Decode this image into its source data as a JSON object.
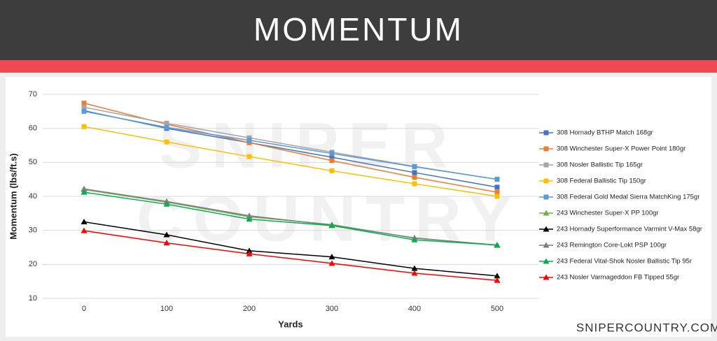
{
  "header": {
    "title": "MOMENTUM"
  },
  "footer": {
    "site": "SNIPERCOUNTRY.COM"
  },
  "watermark": {
    "lines": [
      "SNIPER",
      "COUNTRY"
    ]
  },
  "chart_data": {
    "type": "line",
    "x_label": "Yards",
    "y_label": "Momentum (lbs/ft.s)",
    "x": [
      0,
      100,
      200,
      300,
      400,
      500
    ],
    "xlim": [
      -50,
      550
    ],
    "xticks": [
      0,
      100,
      200,
      300,
      400,
      500
    ],
    "ylim": [
      10,
      70
    ],
    "yticks": [
      10,
      20,
      30,
      40,
      50,
      60,
      70
    ],
    "grid": true,
    "legend": "right",
    "series": [
      {
        "name": "308 Hornady BTHP Match 168gr",
        "color": "#4472c4",
        "marker": "square",
        "values": [
          65.2,
          60.0,
          55.8,
          51.5,
          47.0,
          42.7
        ]
      },
      {
        "name": "308 Winchester Super-X Power Point 180gr",
        "color": "#ed7d31",
        "marker": "square",
        "values": [
          67.4,
          61.2,
          55.8,
          50.5,
          45.6,
          41.2
        ]
      },
      {
        "name": "308 Nosler Ballistic Tip 165gr",
        "color": "#a5a5a5",
        "marker": "square",
        "values": [
          66.2,
          61.5,
          57.2,
          53.0,
          48.8,
          45.0
        ]
      },
      {
        "name": "308 Federal Ballistic Tip 150gr",
        "color": "#ffc000",
        "marker": "square",
        "values": [
          60.5,
          56.0,
          51.7,
          47.5,
          43.7,
          40.0
        ]
      },
      {
        "name": "308 Federal Gold Medal Sierra MatchKing 175gr",
        "color": "#5b9bd5",
        "marker": "square",
        "values": [
          65.0,
          60.3,
          56.5,
          52.6,
          48.7,
          45.0
        ]
      },
      {
        "name": "243 Winchester Super-X PP 100gr",
        "color": "#70ad47",
        "marker": "triangle",
        "values": [
          42.0,
          38.3,
          34.0,
          31.7,
          27.7,
          25.7
        ]
      },
      {
        "name": "243 Hornady Superformance Varmint V-Max 58gr",
        "color": "#000000",
        "marker": "triangle",
        "values": [
          32.5,
          28.7,
          24.0,
          22.2,
          18.8,
          16.6
        ]
      },
      {
        "name": "243 Remington Core-Lokt PSP 100gr",
        "color": "#7f7f7f",
        "marker": "triangle",
        "values": [
          42.2,
          38.5,
          34.3,
          31.5,
          27.8,
          25.6
        ]
      },
      {
        "name": "243 Federal Vital-Shok Nosler Ballistic Tip 95r",
        "color": "#00b050",
        "marker": "triangle",
        "values": [
          41.2,
          37.7,
          33.3,
          31.4,
          27.2,
          25.7
        ]
      },
      {
        "name": "243 Nosler Varmageddon FB Tipped 55gr",
        "color": "#ff0000",
        "marker": "triangle",
        "values": [
          29.9,
          26.3,
          23.1,
          20.3,
          17.4,
          15.3
        ]
      }
    ]
  }
}
